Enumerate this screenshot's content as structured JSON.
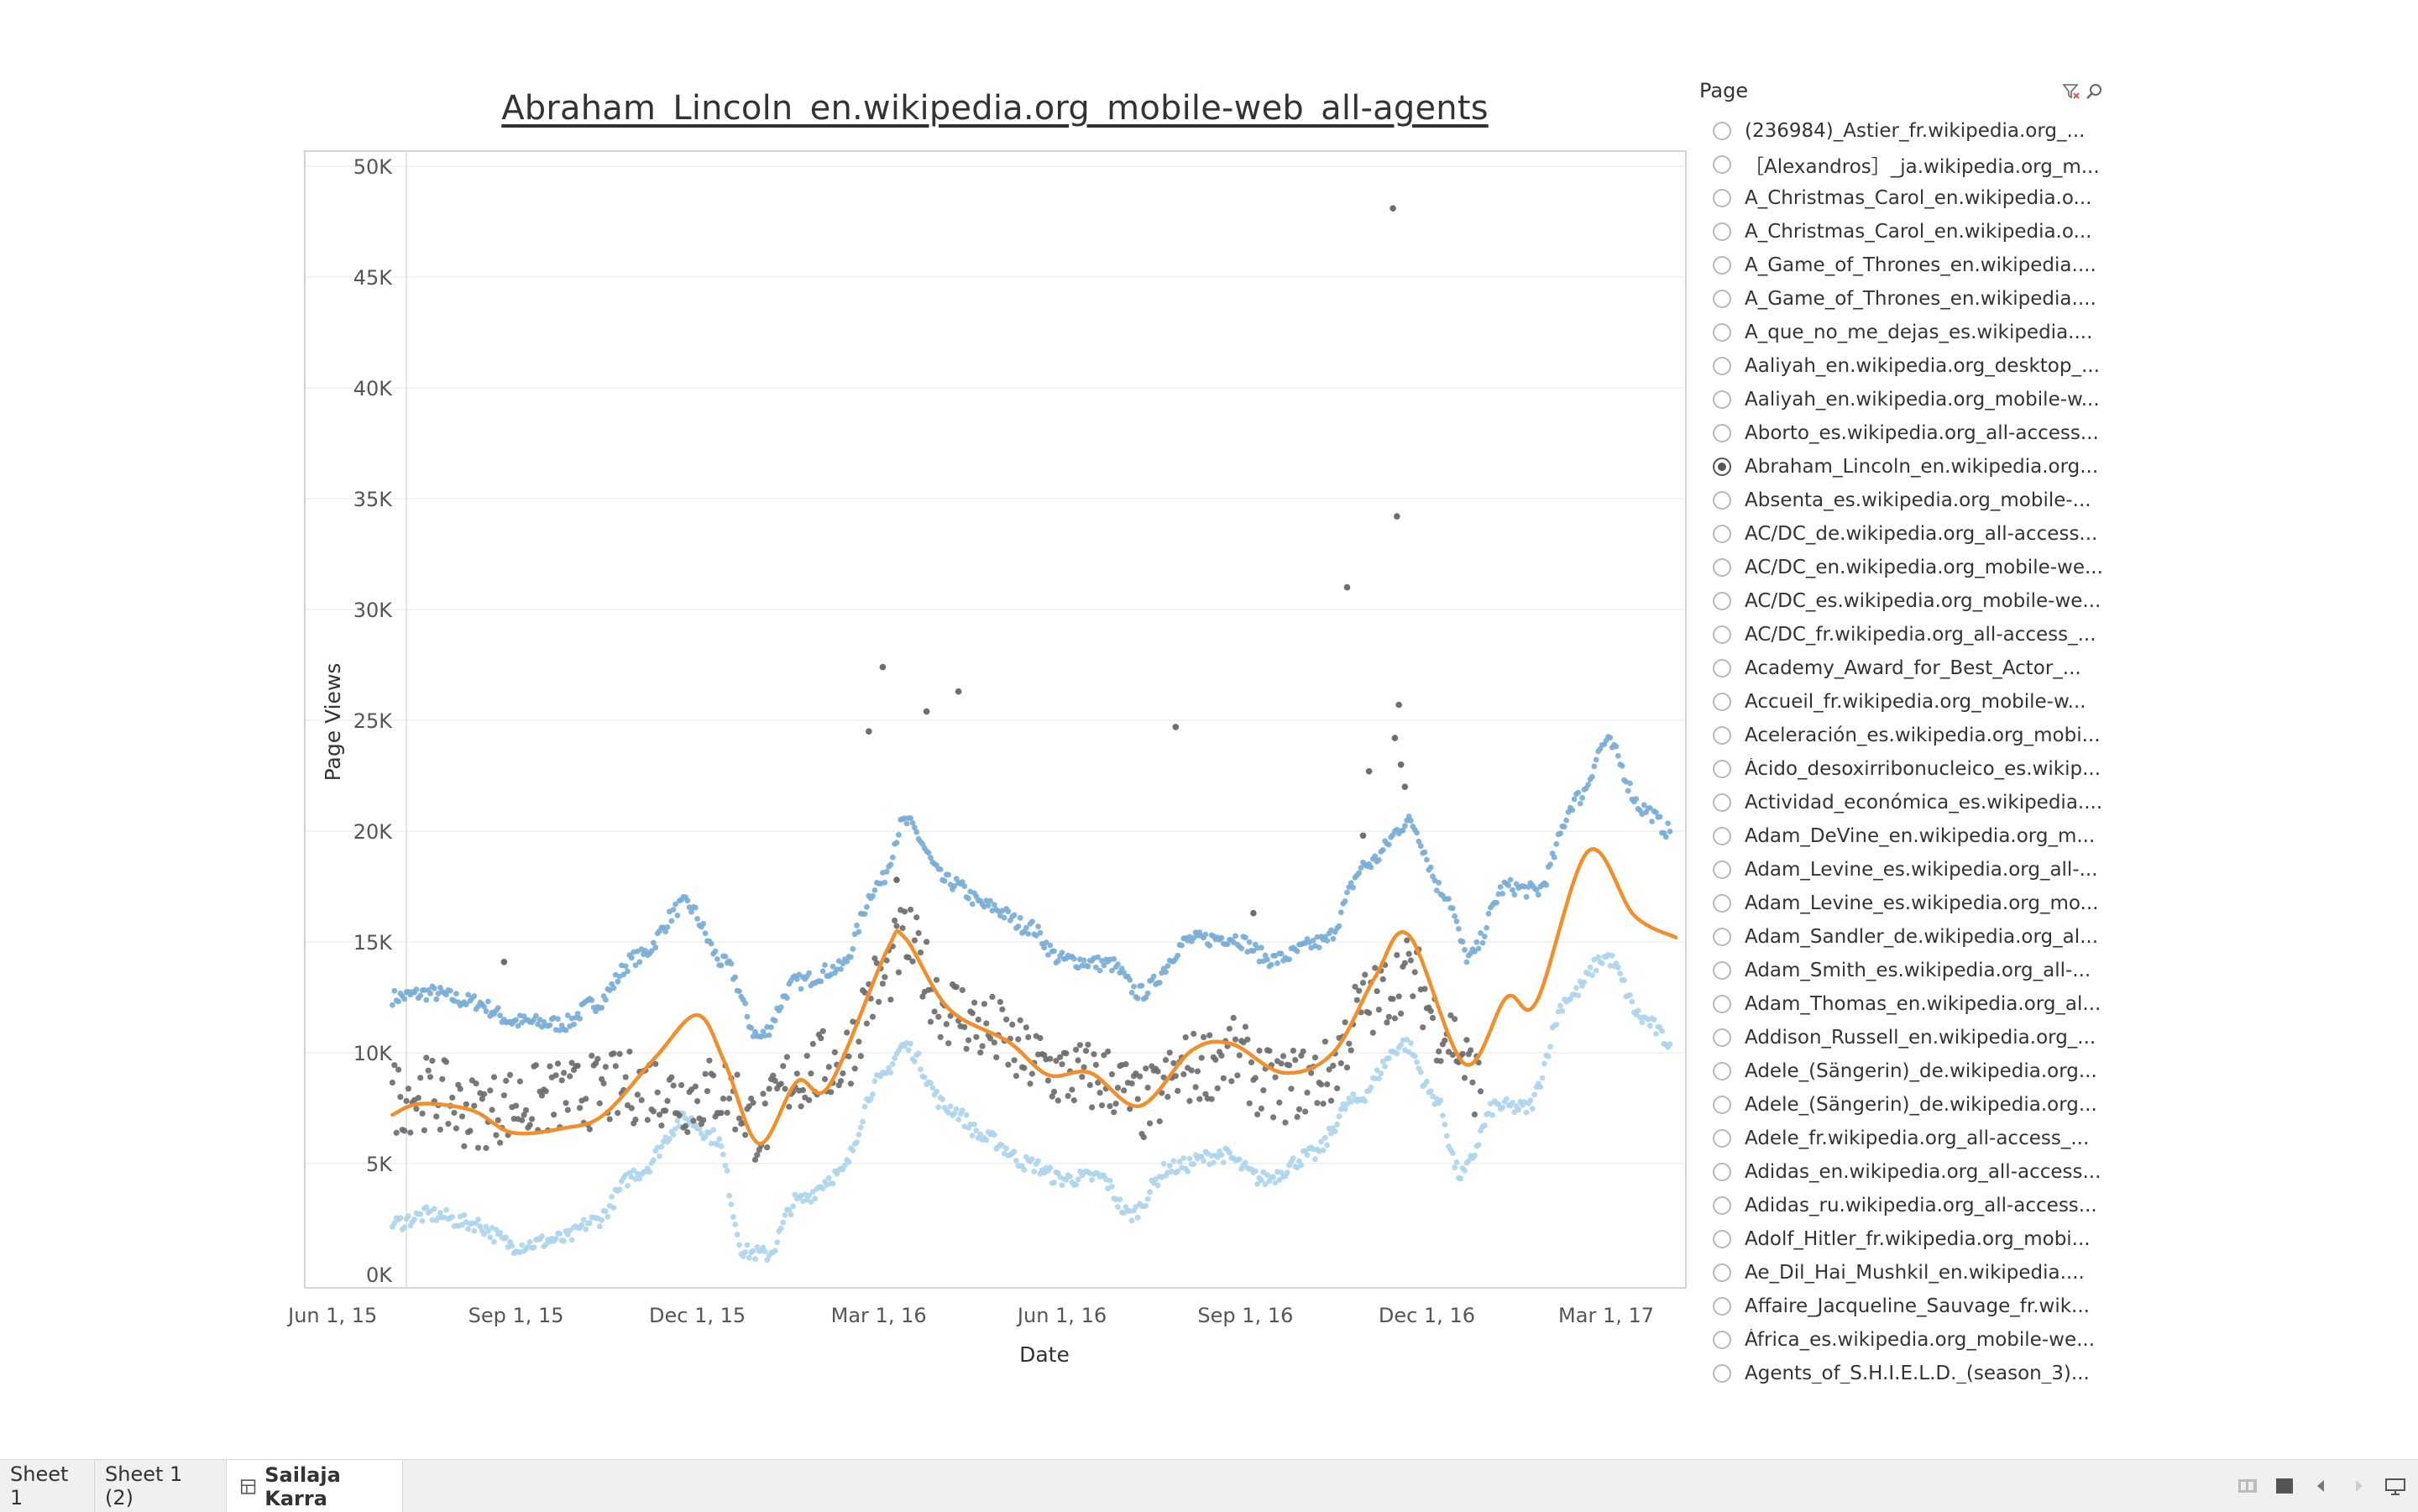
{
  "chart_title": "Abraham_Lincoln_en.wikipedia.org_mobile-web_all-agents",
  "chart_data": {
    "type": "scatter",
    "title": "Abraham_Lincoln_en.wikipedia.org_mobile-web_all-agents",
    "xlabel": "Date",
    "ylabel": "Page Views",
    "x_ticks": [
      "Jun 1, 15",
      "Sep 1, 15",
      "Dec 1, 15",
      "Mar 1, 16",
      "Jun 1, 16",
      "Sep 1, 16",
      "Dec 1, 16",
      "Mar 1, 17"
    ],
    "y_ticks": [
      "0K",
      "5K",
      "10K",
      "15K",
      "20K",
      "25K",
      "30K",
      "35K",
      "40K",
      "45K",
      "50K"
    ],
    "ylim": [
      0,
      50000
    ],
    "xlim": [
      "2015-05-18",
      "2017-04-10"
    ],
    "grid": true,
    "series": [
      {
        "kind": "upper-band",
        "color": "#7aaed6",
        "knots": [
          [
            "2015-07-01",
            12500
          ],
          [
            "2015-07-20",
            12700
          ],
          [
            "2015-08-10",
            12300
          ],
          [
            "2015-09-01",
            11400
          ],
          [
            "2015-09-25",
            11300
          ],
          [
            "2015-10-10",
            12200
          ],
          [
            "2015-11-01",
            14300
          ],
          [
            "2015-11-25",
            16700
          ],
          [
            "2015-12-15",
            14000
          ],
          [
            "2016-01-01",
            10700
          ],
          [
            "2016-01-20",
            13200
          ],
          [
            "2016-02-10",
            13800
          ],
          [
            "2016-03-01",
            17600
          ],
          [
            "2016-03-14",
            20400
          ],
          [
            "2016-04-05",
            17700
          ],
          [
            "2016-04-25",
            16600
          ],
          [
            "2016-05-15",
            15700
          ],
          [
            "2016-06-01",
            14200
          ],
          [
            "2016-06-25",
            14000
          ],
          [
            "2016-07-10",
            12700
          ],
          [
            "2016-08-05",
            15100
          ],
          [
            "2016-08-25",
            15200
          ],
          [
            "2016-09-15",
            14200
          ],
          [
            "2016-10-10",
            15000
          ],
          [
            "2016-11-01",
            18500
          ],
          [
            "2016-11-22",
            20400
          ],
          [
            "2016-12-10",
            17200
          ],
          [
            "2016-12-22",
            14300
          ],
          [
            "2017-01-10",
            17500
          ],
          [
            "2017-01-25",
            17300
          ],
          [
            "2017-02-15",
            21500
          ],
          [
            "2017-03-01",
            24000
          ],
          [
            "2017-03-20",
            21000
          ],
          [
            "2017-04-02",
            20000
          ]
        ]
      },
      {
        "kind": "lower-band",
        "color": "#aed5ec",
        "knots": [
          [
            "2015-07-01",
            2300
          ],
          [
            "2015-07-20",
            2700
          ],
          [
            "2015-08-10",
            2300
          ],
          [
            "2015-09-01",
            1300
          ],
          [
            "2015-09-25",
            1600
          ],
          [
            "2015-10-10",
            2400
          ],
          [
            "2015-11-01",
            4600
          ],
          [
            "2015-11-25",
            7000
          ],
          [
            "2015-12-10",
            6200
          ],
          [
            "2015-12-25",
            1000
          ],
          [
            "2016-01-05",
            900
          ],
          [
            "2016-01-20",
            3300
          ],
          [
            "2016-02-10",
            4500
          ],
          [
            "2016-03-01",
            8700
          ],
          [
            "2016-03-14",
            10300
          ],
          [
            "2016-04-05",
            7500
          ],
          [
            "2016-04-25",
            6100
          ],
          [
            "2016-05-15",
            5000
          ],
          [
            "2016-06-01",
            4300
          ],
          [
            "2016-06-20",
            4400
          ],
          [
            "2016-07-05",
            2700
          ],
          [
            "2016-07-25",
            4800
          ],
          [
            "2016-08-20",
            5400
          ],
          [
            "2016-09-10",
            4300
          ],
          [
            "2016-10-05",
            5400
          ],
          [
            "2016-10-25",
            7800
          ],
          [
            "2016-11-20",
            10400
          ],
          [
            "2016-12-05",
            8000
          ],
          [
            "2016-12-18",
            4500
          ],
          [
            "2017-01-05",
            7600
          ],
          [
            "2017-01-20",
            7500
          ],
          [
            "2017-02-10",
            12500
          ],
          [
            "2017-03-01",
            14300
          ],
          [
            "2017-03-20",
            11500
          ],
          [
            "2017-04-02",
            10500
          ]
        ]
      },
      {
        "kind": "actual",
        "color": "#6e6e6e",
        "knots": [
          [
            "2015-07-01",
            8000
          ],
          [
            "2015-07-20",
            8200
          ],
          [
            "2015-08-10",
            7300
          ],
          [
            "2015-09-01",
            7700
          ],
          [
            "2015-09-25",
            8000
          ],
          [
            "2015-10-15",
            8300
          ],
          [
            "2015-11-05",
            8500
          ],
          [
            "2015-11-25",
            8000
          ],
          [
            "2015-12-15",
            8300
          ],
          [
            "2016-01-01",
            6700
          ],
          [
            "2016-01-20",
            9000
          ],
          [
            "2016-02-10",
            9500
          ],
          [
            "2016-03-01",
            13000
          ],
          [
            "2016-03-14",
            15000
          ],
          [
            "2016-04-05",
            12000
          ],
          [
            "2016-04-25",
            11000
          ],
          [
            "2016-05-15",
            9700
          ],
          [
            "2016-06-01",
            9000
          ],
          [
            "2016-06-25",
            8800
          ],
          [
            "2016-07-10",
            7600
          ],
          [
            "2016-08-05",
            9300
          ],
          [
            "2016-08-25",
            9900
          ],
          [
            "2016-09-15",
            8400
          ],
          [
            "2016-10-10",
            8900
          ],
          [
            "2016-11-01",
            12200
          ],
          [
            "2016-11-22",
            13600
          ],
          [
            "2016-12-10",
            11000
          ],
          [
            "2016-12-28",
            8600
          ]
        ],
        "outliers": [
          [
            "2016-02-25",
            24500
          ],
          [
            "2016-03-03",
            27400
          ],
          [
            "2016-03-25",
            25400
          ],
          [
            "2016-04-10",
            26300
          ],
          [
            "2016-07-28",
            24700
          ],
          [
            "2016-09-05",
            16300
          ],
          [
            "2015-08-26",
            14100
          ],
          [
            "2016-10-22",
            31000
          ],
          [
            "2016-11-02",
            22700
          ],
          [
            "2016-11-14",
            48100
          ],
          [
            "2016-11-16",
            34200
          ],
          [
            "2016-11-17",
            25700
          ],
          [
            "2016-11-15",
            24200
          ],
          [
            "2016-11-18",
            23000
          ],
          [
            "2016-11-20",
            22000
          ],
          [
            "2016-10-30",
            19800
          ],
          [
            "2016-03-10",
            17800
          ]
        ]
      },
      {
        "kind": "trend-line",
        "color": "#f28e2b",
        "points": [
          [
            "2015-07-01",
            7200
          ],
          [
            "2015-07-15",
            7700
          ],
          [
            "2015-08-10",
            7400
          ],
          [
            "2015-08-30",
            6400
          ],
          [
            "2015-09-25",
            6600
          ],
          [
            "2015-10-15",
            7200
          ],
          [
            "2015-11-10",
            9800
          ],
          [
            "2015-12-01",
            11700
          ],
          [
            "2015-12-15",
            9500
          ],
          [
            "2016-01-01",
            5900
          ],
          [
            "2016-01-20",
            8700
          ],
          [
            "2016-02-05",
            8500
          ],
          [
            "2016-03-05",
            14600
          ],
          [
            "2016-03-14",
            15200
          ],
          [
            "2016-04-05",
            12000
          ],
          [
            "2016-05-05",
            10500
          ],
          [
            "2016-05-25",
            9000
          ],
          [
            "2016-06-15",
            9100
          ],
          [
            "2016-07-10",
            7600
          ],
          [
            "2016-08-05",
            10100
          ],
          [
            "2016-08-25",
            10400
          ],
          [
            "2016-09-20",
            9100
          ],
          [
            "2016-10-15",
            10000
          ],
          [
            "2016-11-05",
            13400
          ],
          [
            "2016-11-22",
            15300
          ],
          [
            "2016-12-20",
            9500
          ],
          [
            "2017-01-10",
            12500
          ],
          [
            "2017-01-25",
            12300
          ],
          [
            "2017-02-20",
            19100
          ],
          [
            "2017-03-15",
            16200
          ],
          [
            "2017-04-05",
            15200
          ]
        ]
      }
    ]
  },
  "filter": {
    "header": "Page",
    "items": [
      {
        "label": "(236984)_Astier_fr.wikipedia.org_...",
        "checked": false
      },
      {
        "label": "［Alexandros］_ja.wikipedia.org_m...",
        "checked": false
      },
      {
        "label": "A_Christmas_Carol_en.wikipedia.o...",
        "checked": false
      },
      {
        "label": "A_Christmas_Carol_en.wikipedia.o...",
        "checked": false
      },
      {
        "label": "A_Game_of_Thrones_en.wikipedia....",
        "checked": false
      },
      {
        "label": "A_Game_of_Thrones_en.wikipedia....",
        "checked": false
      },
      {
        "label": "A_que_no_me_dejas_es.wikipedia....",
        "checked": false
      },
      {
        "label": "Aaliyah_en.wikipedia.org_desktop_...",
        "checked": false
      },
      {
        "label": "Aaliyah_en.wikipedia.org_mobile-w...",
        "checked": false
      },
      {
        "label": "Aborto_es.wikipedia.org_all-access...",
        "checked": false
      },
      {
        "label": "Abraham_Lincoln_en.wikipedia.org...",
        "checked": true
      },
      {
        "label": "Absenta_es.wikipedia.org_mobile-...",
        "checked": false
      },
      {
        "label": "AC/DC_de.wikipedia.org_all-access...",
        "checked": false
      },
      {
        "label": "AC/DC_en.wikipedia.org_mobile-we...",
        "checked": false
      },
      {
        "label": "AC/DC_es.wikipedia.org_mobile-we...",
        "checked": false
      },
      {
        "label": "AC/DC_fr.wikipedia.org_all-access_...",
        "checked": false
      },
      {
        "label": "Academy_Award_for_Best_Actor_...",
        "checked": false
      },
      {
        "label": "Accueil_fr.wikipedia.org_mobile-w...",
        "checked": false
      },
      {
        "label": "Aceleración_es.wikipedia.org_mobi...",
        "checked": false
      },
      {
        "label": "Ácido_desoxirribonucleico_es.wikip...",
        "checked": false
      },
      {
        "label": "Actividad_económica_es.wikipedia....",
        "checked": false
      },
      {
        "label": "Adam_DeVine_en.wikipedia.org_m...",
        "checked": false
      },
      {
        "label": "Adam_Levine_es.wikipedia.org_all-...",
        "checked": false
      },
      {
        "label": "Adam_Levine_es.wikipedia.org_mo...",
        "checked": false
      },
      {
        "label": "Adam_Sandler_de.wikipedia.org_al...",
        "checked": false
      },
      {
        "label": "Adam_Smith_es.wikipedia.org_all-...",
        "checked": false
      },
      {
        "label": "Adam_Thomas_en.wikipedia.org_al...",
        "checked": false
      },
      {
        "label": "Addison_Russell_en.wikipedia.org_...",
        "checked": false
      },
      {
        "label": "Adele_(Sängerin)_de.wikipedia.org...",
        "checked": false
      },
      {
        "label": "Adele_(Sängerin)_de.wikipedia.org...",
        "checked": false
      },
      {
        "label": "Adele_fr.wikipedia.org_all-access_...",
        "checked": false
      },
      {
        "label": "Adidas_en.wikipedia.org_all-access...",
        "checked": false
      },
      {
        "label": "Adidas_ru.wikipedia.org_all-access...",
        "checked": false
      },
      {
        "label": "Adolf_Hitler_fr.wikipedia.org_mobi...",
        "checked": false
      },
      {
        "label": "Ae_Dil_Hai_Mushkil_en.wikipedia....",
        "checked": false
      },
      {
        "label": "Affaire_Jacqueline_Sauvage_fr.wik...",
        "checked": false
      },
      {
        "label": "África_es.wikipedia.org_mobile-we...",
        "checked": false
      },
      {
        "label": "Agents_of_S.H.I.E.L.D._(season_3)...",
        "checked": false
      }
    ]
  },
  "tabs": [
    {
      "label": "Sheet 1"
    },
    {
      "label": "Sheet 1 (2)"
    },
    {
      "label": "Sailaja Karra",
      "active": true
    }
  ],
  "icons": {
    "filter_clear": "filter-clear-icon",
    "search": "search-icon",
    "dashboard_tab": "dashboard-grid-icon"
  },
  "colors": {
    "trend": "#f28e2b",
    "upper": "#7aaed6",
    "lower": "#aed5ec",
    "actual": "#6e6e6e"
  }
}
